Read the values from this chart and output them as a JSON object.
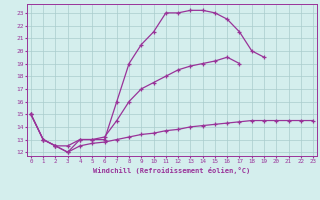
{
  "xlabel": "Windchill (Refroidissement éolien,°C)",
  "background_color": "#d4eeed",
  "grid_color": "#aacccc",
  "line_color": "#993399",
  "xticks": [
    0,
    1,
    2,
    3,
    4,
    5,
    6,
    7,
    8,
    9,
    10,
    11,
    12,
    13,
    14,
    15,
    16,
    17,
    18,
    19,
    20,
    21,
    22,
    23
  ],
  "yticks": [
    12,
    13,
    14,
    15,
    16,
    17,
    18,
    19,
    20,
    21,
    22,
    23
  ],
  "line1_x": [
    0,
    1,
    2,
    3,
    4,
    5,
    6,
    7,
    8,
    9,
    10,
    11,
    12,
    13,
    14,
    15,
    16,
    17,
    18,
    19
  ],
  "line1_y": [
    15.0,
    13.0,
    12.5,
    12.0,
    13.0,
    13.0,
    13.0,
    16.0,
    19.0,
    20.5,
    21.5,
    23.0,
    23.0,
    23.2,
    23.2,
    23.0,
    22.5,
    21.5,
    20.0,
    19.5
  ],
  "line2_x": [
    0,
    1,
    2,
    3,
    4,
    5,
    6,
    7,
    8,
    9,
    10,
    11,
    12,
    13,
    14,
    15,
    16,
    17
  ],
  "line2_y": [
    15.0,
    13.0,
    12.5,
    12.5,
    13.0,
    13.0,
    13.2,
    14.5,
    16.0,
    17.0,
    17.5,
    18.0,
    18.5,
    18.8,
    19.0,
    19.2,
    19.5,
    19.0
  ],
  "line3_x": [
    0,
    1,
    2,
    3,
    4,
    5,
    6,
    7,
    8,
    9,
    10,
    11,
    12,
    13,
    14,
    15,
    16,
    17,
    18,
    19,
    20,
    21,
    22,
    23
  ],
  "line3_y": [
    15.0,
    13.0,
    12.5,
    12.0,
    12.5,
    12.7,
    12.8,
    13.0,
    13.2,
    13.4,
    13.5,
    13.7,
    13.8,
    14.0,
    14.1,
    14.2,
    14.3,
    14.4,
    14.5,
    14.5,
    14.5,
    14.5,
    14.5,
    14.5
  ]
}
